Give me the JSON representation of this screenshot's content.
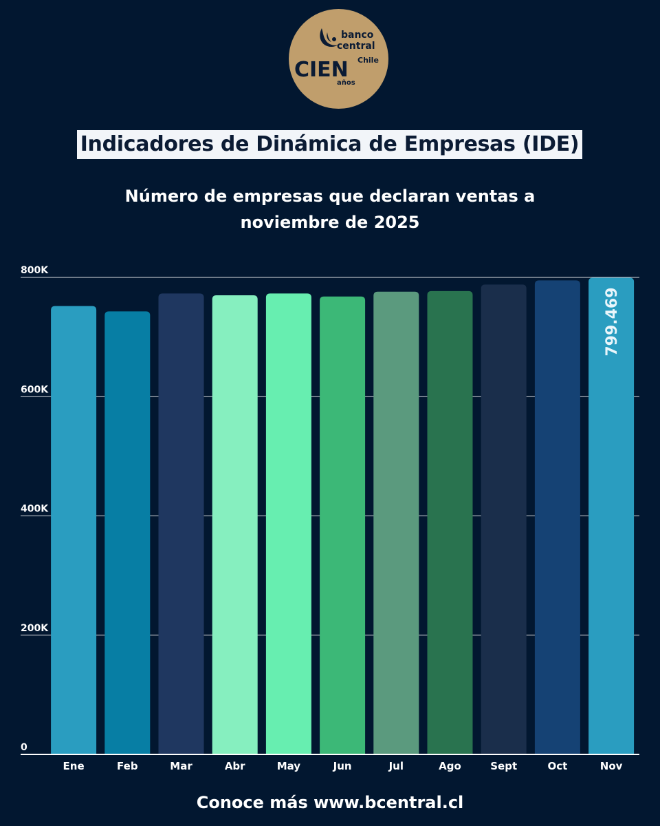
{
  "logo": {
    "line1": "banco",
    "line2": "central",
    "line3": "Chile",
    "mark": "CIEN",
    "sub": "años",
    "bg_color": "#c09e6c",
    "ink_color": "#0b1b34",
    "icon": "condor-icon"
  },
  "header": {
    "title": "Indicadores de Dinámica de Empresas (IDE)"
  },
  "chart_data": {
    "type": "bar",
    "title_lines": [
      "Número de empresas que declaran ventas a",
      "noviembre de 2025"
    ],
    "xlabel": "",
    "ylabel": "",
    "categories": [
      "Ene",
      "Feb",
      "Mar",
      "Abr",
      "May",
      "Jun",
      "Jul",
      "Ago",
      "Sept",
      "Oct",
      "Nov"
    ],
    "values": [
      752000,
      743000,
      773000,
      770000,
      773000,
      768000,
      776000,
      777000,
      788000,
      795000,
      799469
    ],
    "colors": [
      "#2a9dc0",
      "#077ea4",
      "#1f3760",
      "#86efbf",
      "#67eeb0",
      "#3cb877",
      "#5b9a7e",
      "#29734f",
      "#1a2e4b",
      "#154274",
      "#2a9dc0"
    ],
    "data_labels": [
      {
        "index": 10,
        "text": "799.469"
      }
    ],
    "y_ticks": [
      {
        "value": 0,
        "label": "0"
      },
      {
        "value": 200000,
        "label": "200K"
      },
      {
        "value": 400000,
        "label": "400K"
      },
      {
        "value": 600000,
        "label": "600K"
      },
      {
        "value": 800000,
        "label": "800K"
      }
    ],
    "ylim": [
      0,
      800000
    ],
    "grid": true,
    "grid_color": "#ffffff"
  },
  "footer": {
    "text": "Conoce más www.bcentral.cl"
  }
}
